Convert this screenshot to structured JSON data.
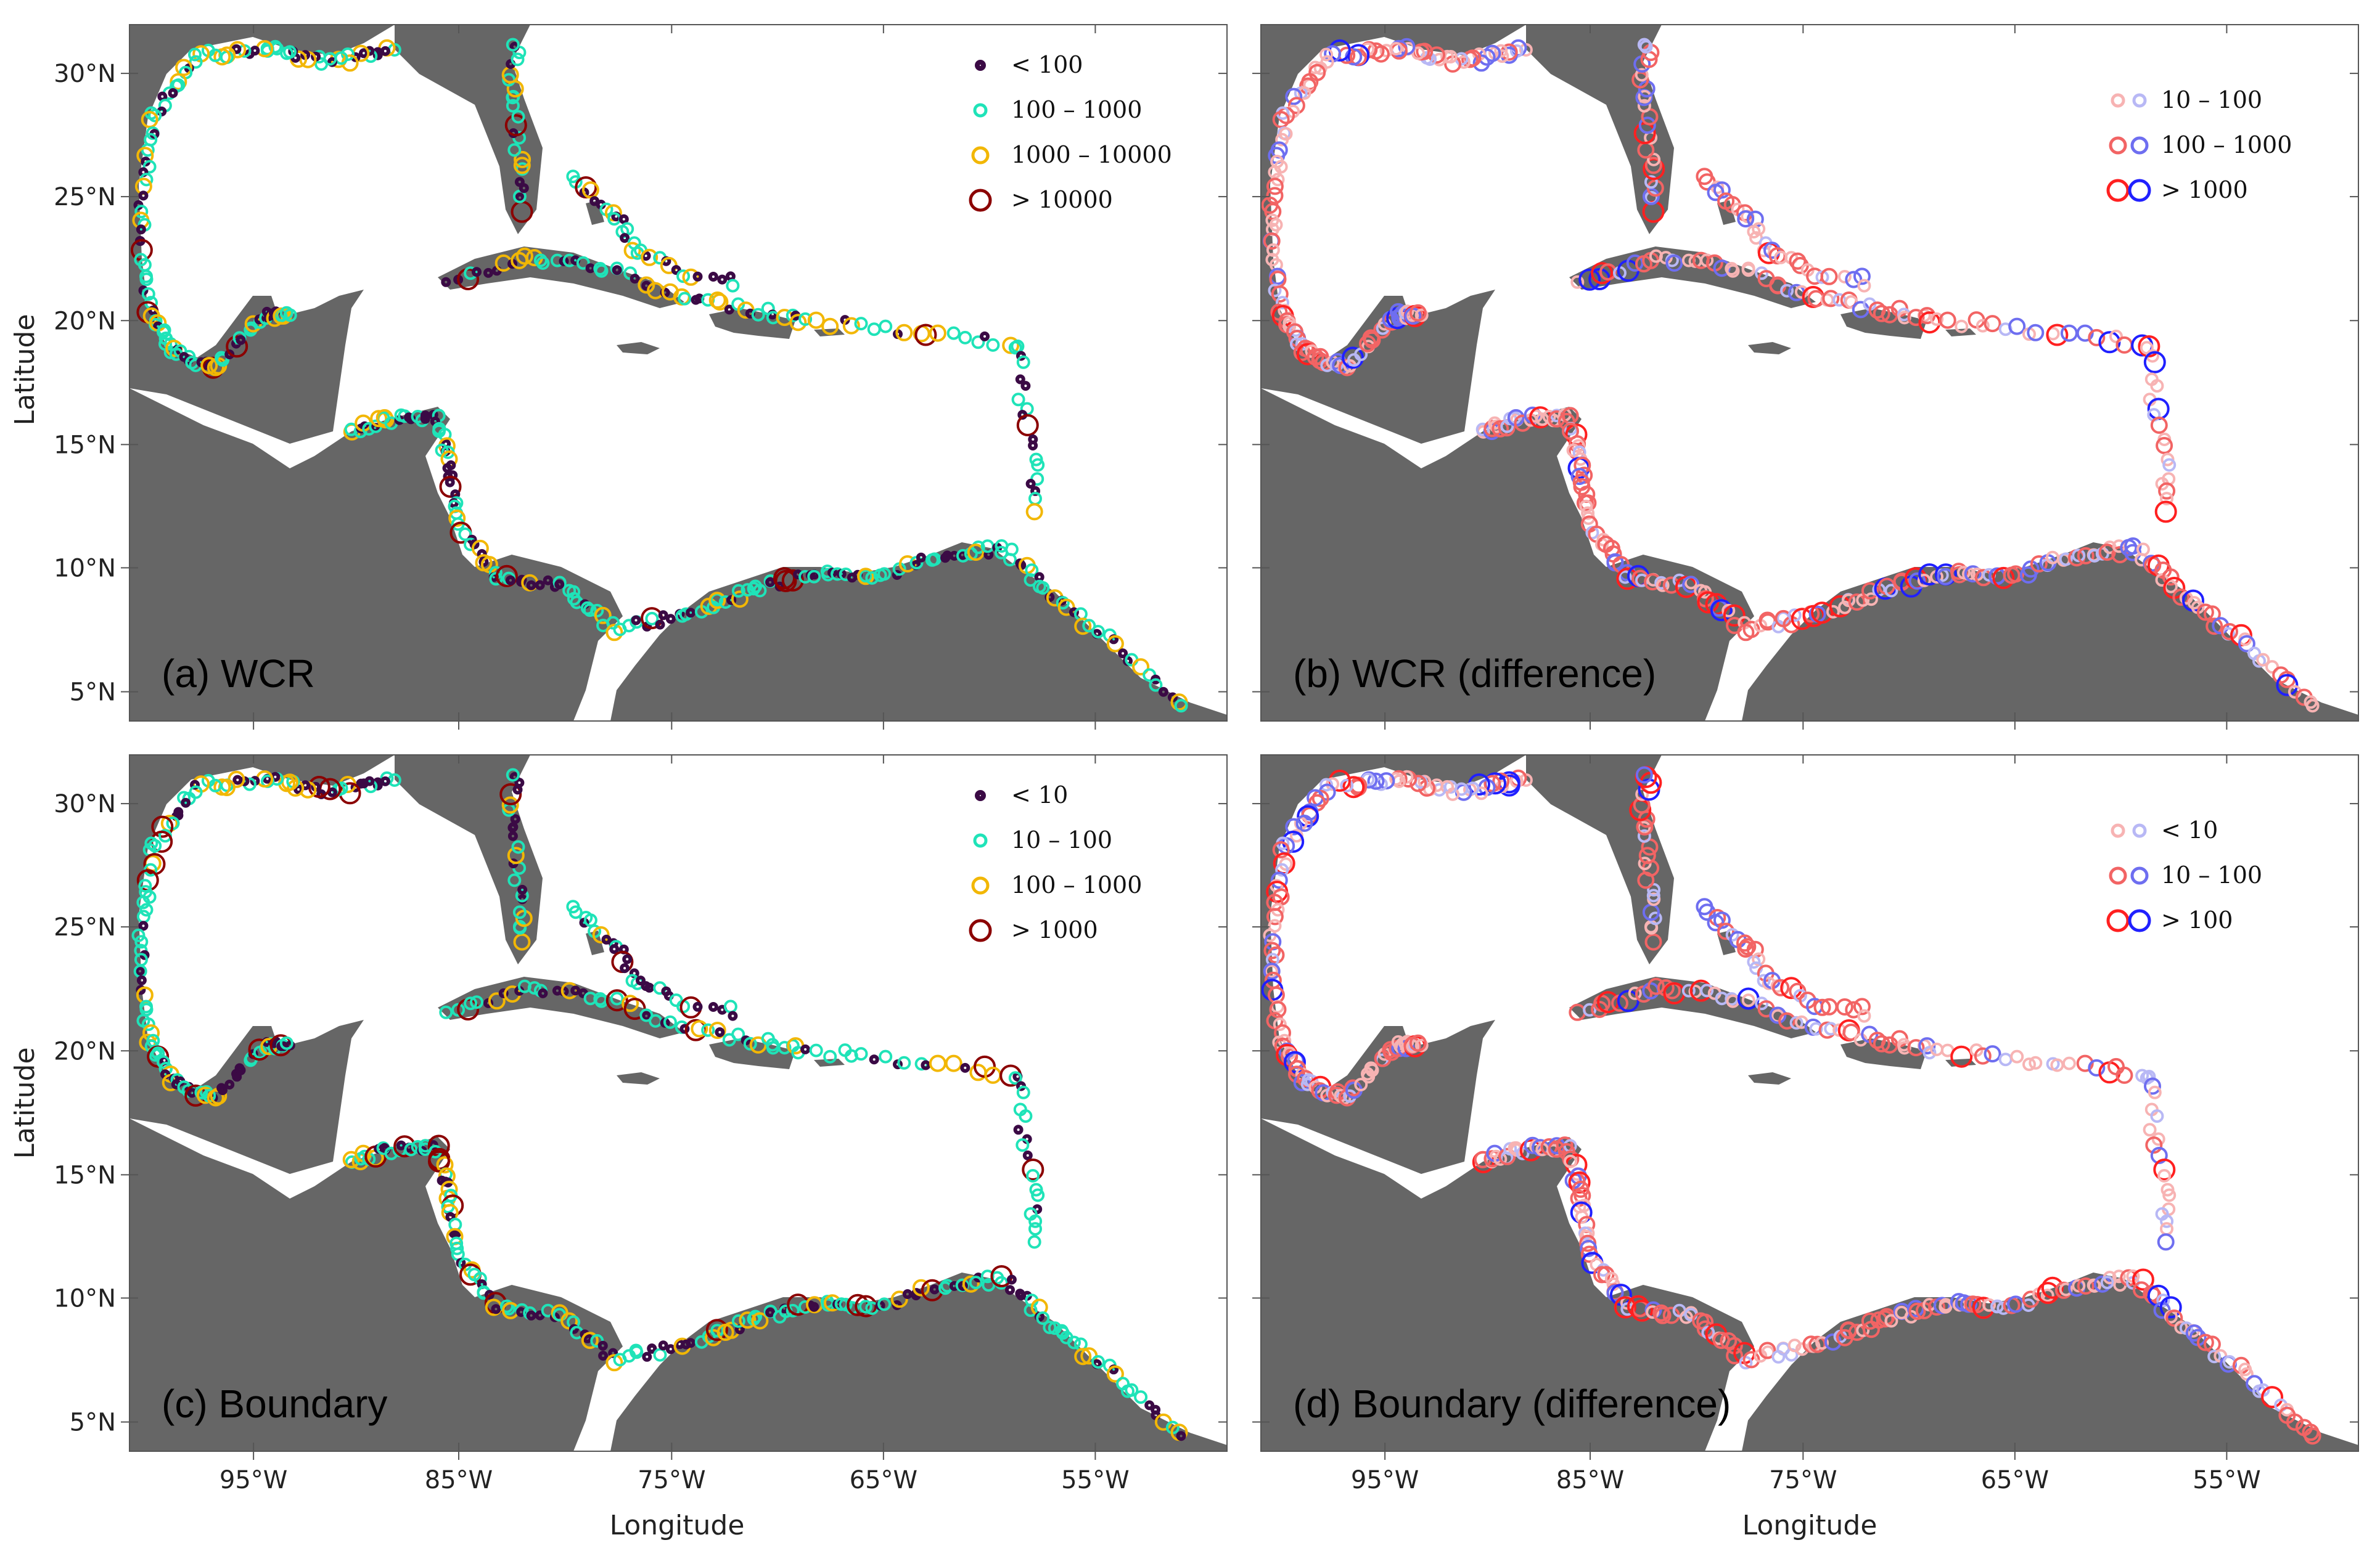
{
  "figure": {
    "axis_labels": {
      "x": "Longitude",
      "y": "Latitude"
    },
    "x_ticks": [
      "95°W",
      "85°W",
      "75°W",
      "65°W",
      "55°W"
    ],
    "y_ticks": [
      "30°N",
      "25°N",
      "20°N",
      "15°N",
      "10°N",
      "5°N"
    ],
    "land_color": "#666666",
    "panels": [
      {
        "id": "a",
        "label": "(a) WCR",
        "legend": [
          {
            "text": "< 100",
            "color": "#3b0a45",
            "size": 1
          },
          {
            "text": "100 – 1000",
            "color": "#1fe3b8",
            "size": 2
          },
          {
            "text": "1000 – 10000",
            "color": "#f2b705",
            "size": 3
          },
          {
            "text": "> 10000",
            "color": "#8b0000",
            "size": 4
          }
        ]
      },
      {
        "id": "b",
        "label": "(b) WCR (difference)",
        "legend": [
          {
            "text": "10 – 100",
            "colors": [
              "#f7b3b3",
              "#b8b8f5"
            ],
            "size": 2
          },
          {
            "text": "100 – 1000",
            "colors": [
              "#f26464",
              "#6e6ef0"
            ],
            "size": 3
          },
          {
            "text": "> 1000",
            "colors": [
              "#ff2020",
              "#2020ff"
            ],
            "size": 4
          }
        ]
      },
      {
        "id": "c",
        "label": "(c) Boundary",
        "legend": [
          {
            "text": "< 10",
            "color": "#3b0a45",
            "size": 1
          },
          {
            "text": "10 – 100",
            "color": "#1fe3b8",
            "size": 2
          },
          {
            "text": "100 – 1000",
            "color": "#f2b705",
            "size": 3
          },
          {
            "text": "> 1000",
            "color": "#8b0000",
            "size": 4
          }
        ]
      },
      {
        "id": "d",
        "label": "(d) Boundary (difference)",
        "legend": [
          {
            "text": "< 10",
            "colors": [
              "#f7b3b3",
              "#b8b8f5"
            ],
            "size": 2
          },
          {
            "text": "10 – 100",
            "colors": [
              "#f26464",
              "#6e6ef0"
            ],
            "size": 3
          },
          {
            "text": "> 100",
            "colors": [
              "#ff2020",
              "#2020ff"
            ],
            "size": 4
          }
        ]
      }
    ]
  }
}
